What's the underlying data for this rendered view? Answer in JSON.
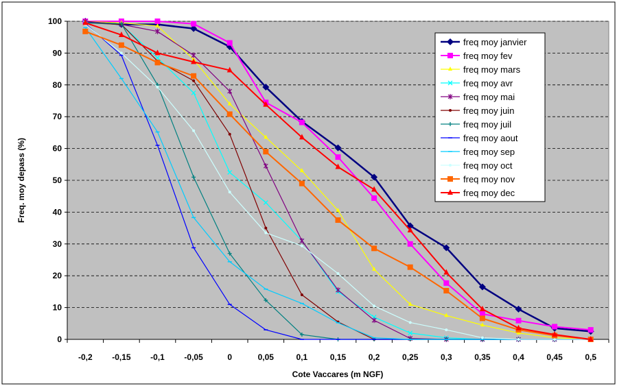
{
  "chart_data": {
    "type": "line",
    "title": "",
    "xlabel": "Cote Vaccares (m NGF)",
    "ylabel": "Freq. moy depass (%)",
    "x": [
      -0.2,
      -0.15,
      -0.1,
      -0.05,
      0,
      0.05,
      0.1,
      0.15,
      0.2,
      0.25,
      0.3,
      0.35,
      0.4,
      0.45,
      0.5
    ],
    "x_tick_labels": [
      "-0,2",
      "-0,15",
      "-0,1",
      "-0,05",
      "0",
      "0,05",
      "0,1",
      "0,15",
      "0,2",
      "0,25",
      "0,3",
      "0,35",
      "0,4",
      "0,45",
      "0,5"
    ],
    "y_ticks": [
      0,
      10,
      20,
      30,
      40,
      50,
      60,
      70,
      80,
      90,
      100
    ],
    "y_tick_labels": [
      "0",
      "10",
      "20",
      "30",
      "40",
      "50",
      "60",
      "70",
      "80",
      "90",
      "100"
    ],
    "ylim": [
      0,
      100
    ],
    "grid": "horizontal-dashed",
    "legend_position": "top-right",
    "plot_background": "#c0c0c0",
    "series": [
      {
        "name": "freq moy janvier",
        "color": "#000080",
        "marker": "diamond",
        "width": 2.5,
        "values": [
          100,
          99,
          99,
          97.7,
          92,
          79.3,
          68.5,
          60.2,
          51,
          35.7,
          28.8,
          16.5,
          9.5,
          3.5,
          2.5
        ]
      },
      {
        "name": "freq moy fev",
        "color": "#ff00ff",
        "marker": "square",
        "width": 2,
        "values": [
          100,
          100,
          100,
          99.2,
          93.2,
          74.5,
          68.2,
          57.3,
          44.4,
          30,
          17.7,
          8,
          5.9,
          4,
          3
        ]
      },
      {
        "name": "freq moy mars",
        "color": "#ffff00",
        "marker": "triangle",
        "width": 1.2,
        "values": [
          100,
          99.5,
          98.5,
          88,
          74,
          63.5,
          53,
          40.5,
          22,
          11,
          7.5,
          4.5,
          2,
          0.5,
          0
        ]
      },
      {
        "name": "freq moy avr",
        "color": "#00ffff",
        "marker": "x",
        "width": 1.2,
        "values": [
          99.5,
          99,
          88.5,
          77.5,
          52.5,
          43,
          31,
          15,
          7,
          2,
          0.5,
          0,
          0,
          0,
          0
        ]
      },
      {
        "name": "freq moy mai",
        "color": "#800080",
        "marker": "star",
        "width": 1.2,
        "values": [
          100,
          99,
          96.8,
          89.3,
          78,
          54.5,
          31,
          15.5,
          6,
          0.3,
          0,
          0,
          0,
          0,
          0
        ]
      },
      {
        "name": "freq moy juin",
        "color": "#800000",
        "marker": "circle",
        "width": 1.2,
        "values": [
          99.5,
          99,
          87.5,
          81.3,
          64.5,
          35,
          14,
          5.5,
          0,
          0,
          0,
          0,
          0,
          0,
          0
        ]
      },
      {
        "name": "freq moy juil",
        "color": "#008080",
        "marker": "plus",
        "width": 1.2,
        "values": [
          99.5,
          99.2,
          80,
          51,
          27,
          12.3,
          1.5,
          0,
          0,
          0,
          0,
          0,
          0,
          0,
          0
        ]
      },
      {
        "name": "freq moy aout",
        "color": "#0000ff",
        "marker": "dash",
        "width": 1.2,
        "values": [
          99.3,
          89.3,
          61,
          28.8,
          11,
          3,
          0,
          0,
          0,
          0,
          0,
          0,
          0,
          0,
          0
        ]
      },
      {
        "name": "freq moy sep",
        "color": "#00ccff",
        "marker": "dash",
        "width": 1.2,
        "values": [
          98,
          82,
          65.2,
          38.3,
          24.4,
          15.8,
          11.3,
          5.2,
          0.5,
          0,
          0,
          0,
          0,
          0,
          0
        ]
      },
      {
        "name": "freq moy oct",
        "color": "#ccffff",
        "marker": "circle",
        "width": 1.2,
        "values": [
          99,
          90,
          79.3,
          65.6,
          46.3,
          33.5,
          29.4,
          20.7,
          10.5,
          5.3,
          3,
          0.5,
          0,
          0,
          0
        ]
      },
      {
        "name": "freq moy nov",
        "color": "#ff6600",
        "marker": "square",
        "width": 2,
        "values": [
          96.8,
          92.5,
          87,
          82.8,
          70.8,
          59,
          49,
          37.5,
          28.6,
          22.7,
          15.3,
          6.6,
          3,
          1.2,
          0
        ]
      },
      {
        "name": "freq moy dec",
        "color": "#ff0000",
        "marker": "triangle",
        "width": 2,
        "values": [
          99.5,
          95.7,
          90,
          87.2,
          84.6,
          73.8,
          63.5,
          54.2,
          47.1,
          34.3,
          21,
          9.5,
          3.5,
          1.5,
          0
        ]
      }
    ]
  }
}
